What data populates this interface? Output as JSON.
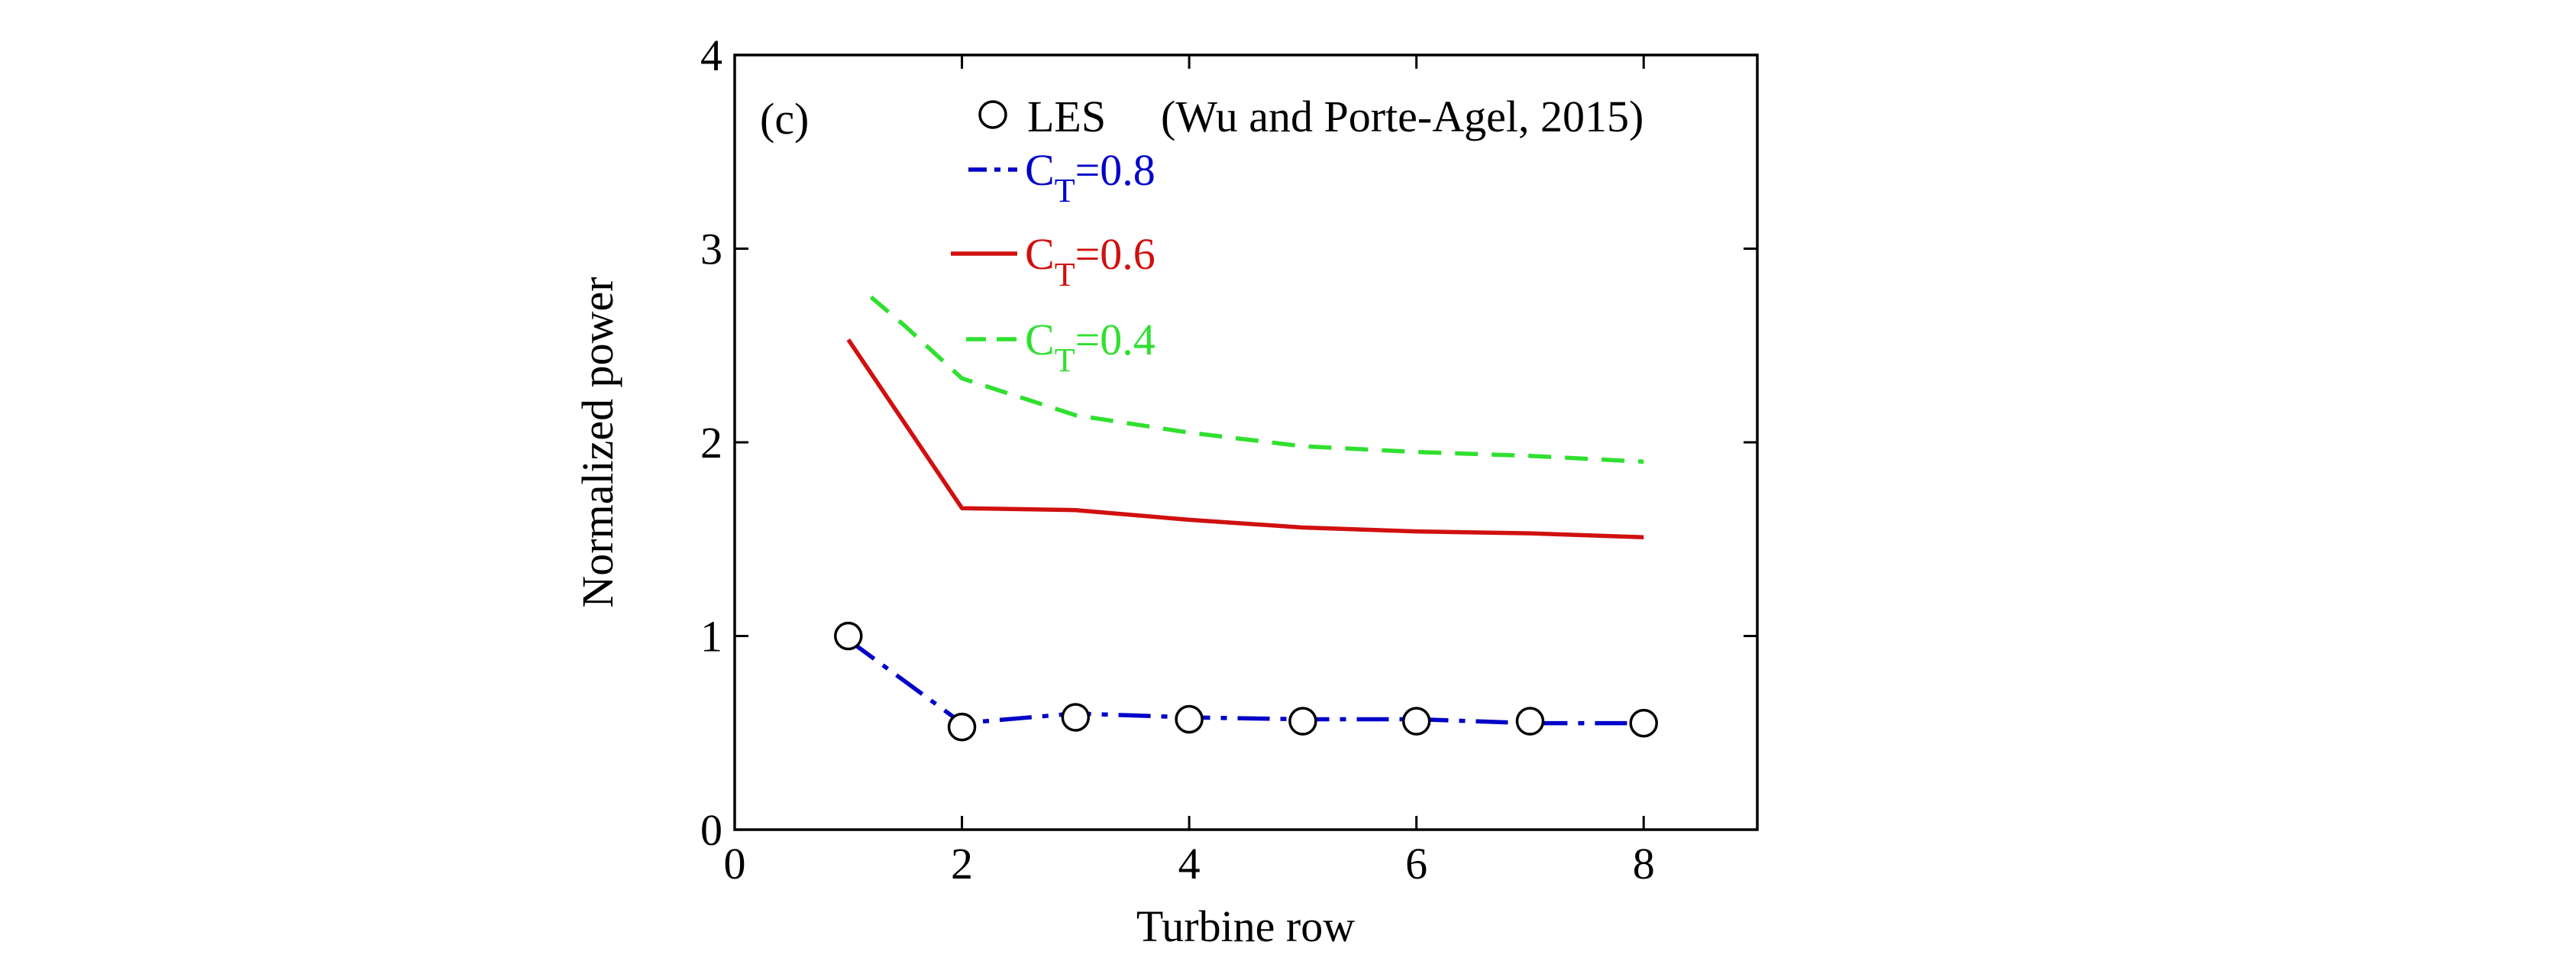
{
  "chart_data": {
    "type": "line",
    "panel_label": "(c)",
    "xlabel": "Turbine row",
    "ylabel": "Normalized power",
    "xlim": [
      0,
      9
    ],
    "ylim": [
      0,
      4
    ],
    "xticks": [
      0,
      2,
      4,
      6,
      8
    ],
    "yticks": [
      0,
      1,
      2,
      3,
      4
    ],
    "grid": false,
    "legend_position": "top-right",
    "series": [
      {
        "name": "LES",
        "legend_label": "LES",
        "legend_extra": "(Wu and Porte-Agel, 2015)",
        "style": "markers",
        "marker": "open-circle",
        "color": "#000000",
        "x": [
          1,
          2,
          3,
          4,
          5,
          6,
          7,
          8
        ],
        "y": [
          1.0,
          0.53,
          0.58,
          0.57,
          0.56,
          0.56,
          0.56,
          0.55
        ]
      },
      {
        "name": "CT=0.8",
        "legend_main": "C",
        "legend_sub": "T",
        "legend_tail": "=0.8",
        "style": "dash-dot",
        "color": "#0000c8",
        "x": [
          1,
          2,
          3,
          4,
          5,
          6,
          7,
          8
        ],
        "y": [
          0.98,
          0.55,
          0.6,
          0.58,
          0.57,
          0.57,
          0.55,
          0.55
        ]
      },
      {
        "name": "CT=0.6",
        "legend_main": "C",
        "legend_sub": "T",
        "legend_tail": "=0.6",
        "style": "solid",
        "color": "#d01010",
        "x": [
          1,
          2,
          3,
          4,
          5,
          6,
          7,
          8
        ],
        "y": [
          2.53,
          1.66,
          1.65,
          1.6,
          1.56,
          1.54,
          1.53,
          1.51
        ]
      },
      {
        "name": "CT=0.4",
        "legend_main": "C",
        "legend_sub": "T",
        "legend_tail": "=0.4",
        "style": "dashed",
        "color": "#30e030",
        "x": [
          1.2,
          1.5,
          2,
          3,
          4,
          5,
          6,
          7,
          8
        ],
        "y": [
          2.75,
          2.6,
          2.33,
          2.14,
          2.05,
          1.98,
          1.95,
          1.93,
          1.9
        ]
      }
    ]
  }
}
